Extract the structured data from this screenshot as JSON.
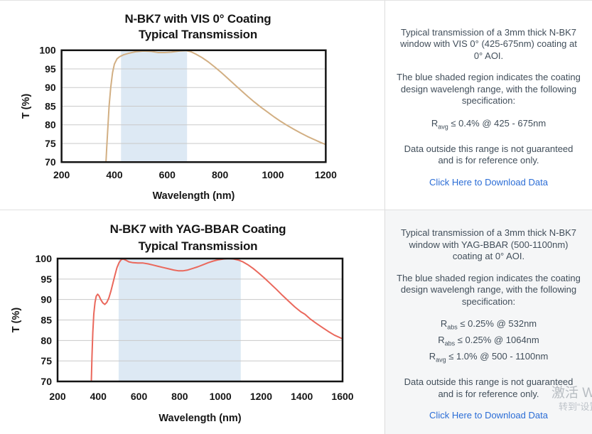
{
  "panels": [
    {
      "p1": "Typical transmission of a 3mm thick N-BK7 window with VIS 0° (425-675nm) coating at 0° AOI.",
      "p2": "The blue shaded region indicates the coating design wavelengh range, with the following specification:",
      "specs": [
        {
          "base": "R",
          "sub": "avg",
          "text": "≤ 0.4% @ 425 - 675nm"
        }
      ],
      "p3": "Data outside this range is not guaranteed and is for reference only.",
      "link": "Click Here to Download Data"
    },
    {
      "p1": "Typical transmission of a 3mm thick N-BK7 window with YAG-BBAR (500-1100nm) coating at 0° AOI.",
      "p2": "The blue shaded region indicates the coating design wavelengh range, with the following specification:",
      "specs": [
        {
          "base": "R",
          "sub": "abs",
          "text": "≤ 0.25% @ 532nm"
        },
        {
          "base": "R",
          "sub": "abs",
          "text": "≤ 0.25% @ 1064nm"
        },
        {
          "base": "R",
          "sub": "avg",
          "text": "≤ 1.0% @ 500 - 1100nm"
        }
      ],
      "p3": "Data outside this range is not guaranteed and is for reference only.",
      "link": "Click Here to Download Data"
    }
  ],
  "watermark": {
    "line1": "激活 Windows",
    "line2": "转到“设置”以激活 Windows"
  },
  "colors": {
    "vis_curve": "#d2af83",
    "yag_curve": "#ea685c",
    "shaded_band": "#dde9f4",
    "gridline": "#c9c9c9",
    "plot_border": "#141414",
    "link_blue": "#2b6dd6",
    "body_text": "#414e5a"
  },
  "chart_data": [
    {
      "type": "line",
      "title": "N-BK7 with VIS 0° Coating",
      "subtitle": "Typical Transmission",
      "xlabel": "Wavelength (nm)",
      "ylabel": "T (%)",
      "xlim": [
        200,
        1200
      ],
      "ylim": [
        70,
        100
      ],
      "xticks": [
        200,
        400,
        600,
        800,
        1000,
        1200
      ],
      "yticks": [
        70,
        75,
        80,
        85,
        90,
        95,
        100
      ],
      "grid": "horizontal",
      "legend": "none",
      "shaded_region": {
        "x0": 425,
        "x1": 675,
        "color": "#dde9f4"
      },
      "line_color": "#d2af83",
      "series": [
        {
          "name": "VIS 0° coated N-BK7 transmission",
          "points": [
            [
              368,
              70
            ],
            [
              371,
              74
            ],
            [
              375,
              79
            ],
            [
              380,
              85
            ],
            [
              386,
              90
            ],
            [
              393,
              94
            ],
            [
              400,
              96.3
            ],
            [
              410,
              97.7
            ],
            [
              420,
              98.3
            ],
            [
              435,
              98.8
            ],
            [
              455,
              99.2
            ],
            [
              480,
              99.6
            ],
            [
              510,
              99.8
            ],
            [
              540,
              99.7
            ],
            [
              565,
              99.4
            ],
            [
              590,
              99.4
            ],
            [
              615,
              99.5
            ],
            [
              645,
              99.8
            ],
            [
              672,
              99.9
            ],
            [
              690,
              99.6
            ],
            [
              710,
              98.9
            ],
            [
              730,
              98.1
            ],
            [
              755,
              96.9
            ],
            [
              780,
              95.5
            ],
            [
              805,
              94.0
            ],
            [
              830,
              92.4
            ],
            [
              855,
              90.8
            ],
            [
              880,
              89.2
            ],
            [
              905,
              87.6
            ],
            [
              930,
              86.1
            ],
            [
              955,
              84.7
            ],
            [
              980,
              83.4
            ],
            [
              1005,
              82.1
            ],
            [
              1030,
              80.9
            ],
            [
              1055,
              79.8
            ],
            [
              1080,
              78.8
            ],
            [
              1105,
              77.8
            ],
            [
              1130,
              76.9
            ],
            [
              1155,
              76.1
            ],
            [
              1180,
              75.3
            ],
            [
              1200,
              74.7
            ]
          ]
        }
      ]
    },
    {
      "type": "line",
      "title": "N-BK7 with YAG-BBAR Coating",
      "subtitle": "Typical Transmission",
      "xlabel": "Wavelength (nm)",
      "ylabel": "T (%)",
      "xlim": [
        200,
        1600
      ],
      "ylim": [
        70,
        100
      ],
      "xticks": [
        200,
        400,
        600,
        800,
        1000,
        1200,
        1400,
        1600
      ],
      "yticks": [
        70,
        75,
        80,
        85,
        90,
        95,
        100
      ],
      "grid": "horizontal",
      "legend": "none",
      "shaded_region": {
        "x0": 500,
        "x1": 1100,
        "color": "#dde9f4"
      },
      "line_color": "#ea685c",
      "series": [
        {
          "name": "YAG-BBAR coated N-BK7 transmission",
          "points": [
            [
              366,
              70
            ],
            [
              369,
              76
            ],
            [
              373,
              82
            ],
            [
              378,
              86.5
            ],
            [
              384,
              89.3
            ],
            [
              390,
              90.8
            ],
            [
              397,
              91.3
            ],
            [
              404,
              90.9
            ],
            [
              412,
              90.0
            ],
            [
              422,
              89.2
            ],
            [
              432,
              88.8
            ],
            [
              442,
              89.3
            ],
            [
              452,
              90.4
            ],
            [
              462,
              92.0
            ],
            [
              472,
              94.0
            ],
            [
              482,
              96.0
            ],
            [
              492,
              97.8
            ],
            [
              502,
              99.0
            ],
            [
              512,
              99.7
            ],
            [
              522,
              99.9
            ],
            [
              535,
              99.6
            ],
            [
              550,
              99.2
            ],
            [
              570,
              99.0
            ],
            [
              595,
              98.9
            ],
            [
              620,
              98.9
            ],
            [
              645,
              98.7
            ],
            [
              670,
              98.4
            ],
            [
              695,
              98.1
            ],
            [
              720,
              97.8
            ],
            [
              745,
              97.5
            ],
            [
              770,
              97.2
            ],
            [
              795,
              97.0
            ],
            [
              815,
              97.0
            ],
            [
              840,
              97.2
            ],
            [
              865,
              97.6
            ],
            [
              890,
              98.0
            ],
            [
              915,
              98.5
            ],
            [
              940,
              99.0
            ],
            [
              965,
              99.4
            ],
            [
              990,
              99.7
            ],
            [
              1015,
              99.9
            ],
            [
              1040,
              100
            ],
            [
              1065,
              99.9
            ],
            [
              1090,
              99.6
            ],
            [
              1110,
              99.2
            ],
            [
              1135,
              98.5
            ],
            [
              1160,
              97.6
            ],
            [
              1185,
              96.6
            ],
            [
              1215,
              95.3
            ],
            [
              1245,
              93.9
            ],
            [
              1275,
              92.5
            ],
            [
              1305,
              91.0
            ],
            [
              1335,
              89.6
            ],
            [
              1365,
              88.2
            ],
            [
              1395,
              87.0
            ],
            [
              1415,
              86.4
            ],
            [
              1440,
              85.3
            ],
            [
              1470,
              84.2
            ],
            [
              1500,
              83.2
            ],
            [
              1530,
              82.2
            ],
            [
              1560,
              81.3
            ],
            [
              1600,
              80.4
            ]
          ]
        }
      ]
    }
  ]
}
